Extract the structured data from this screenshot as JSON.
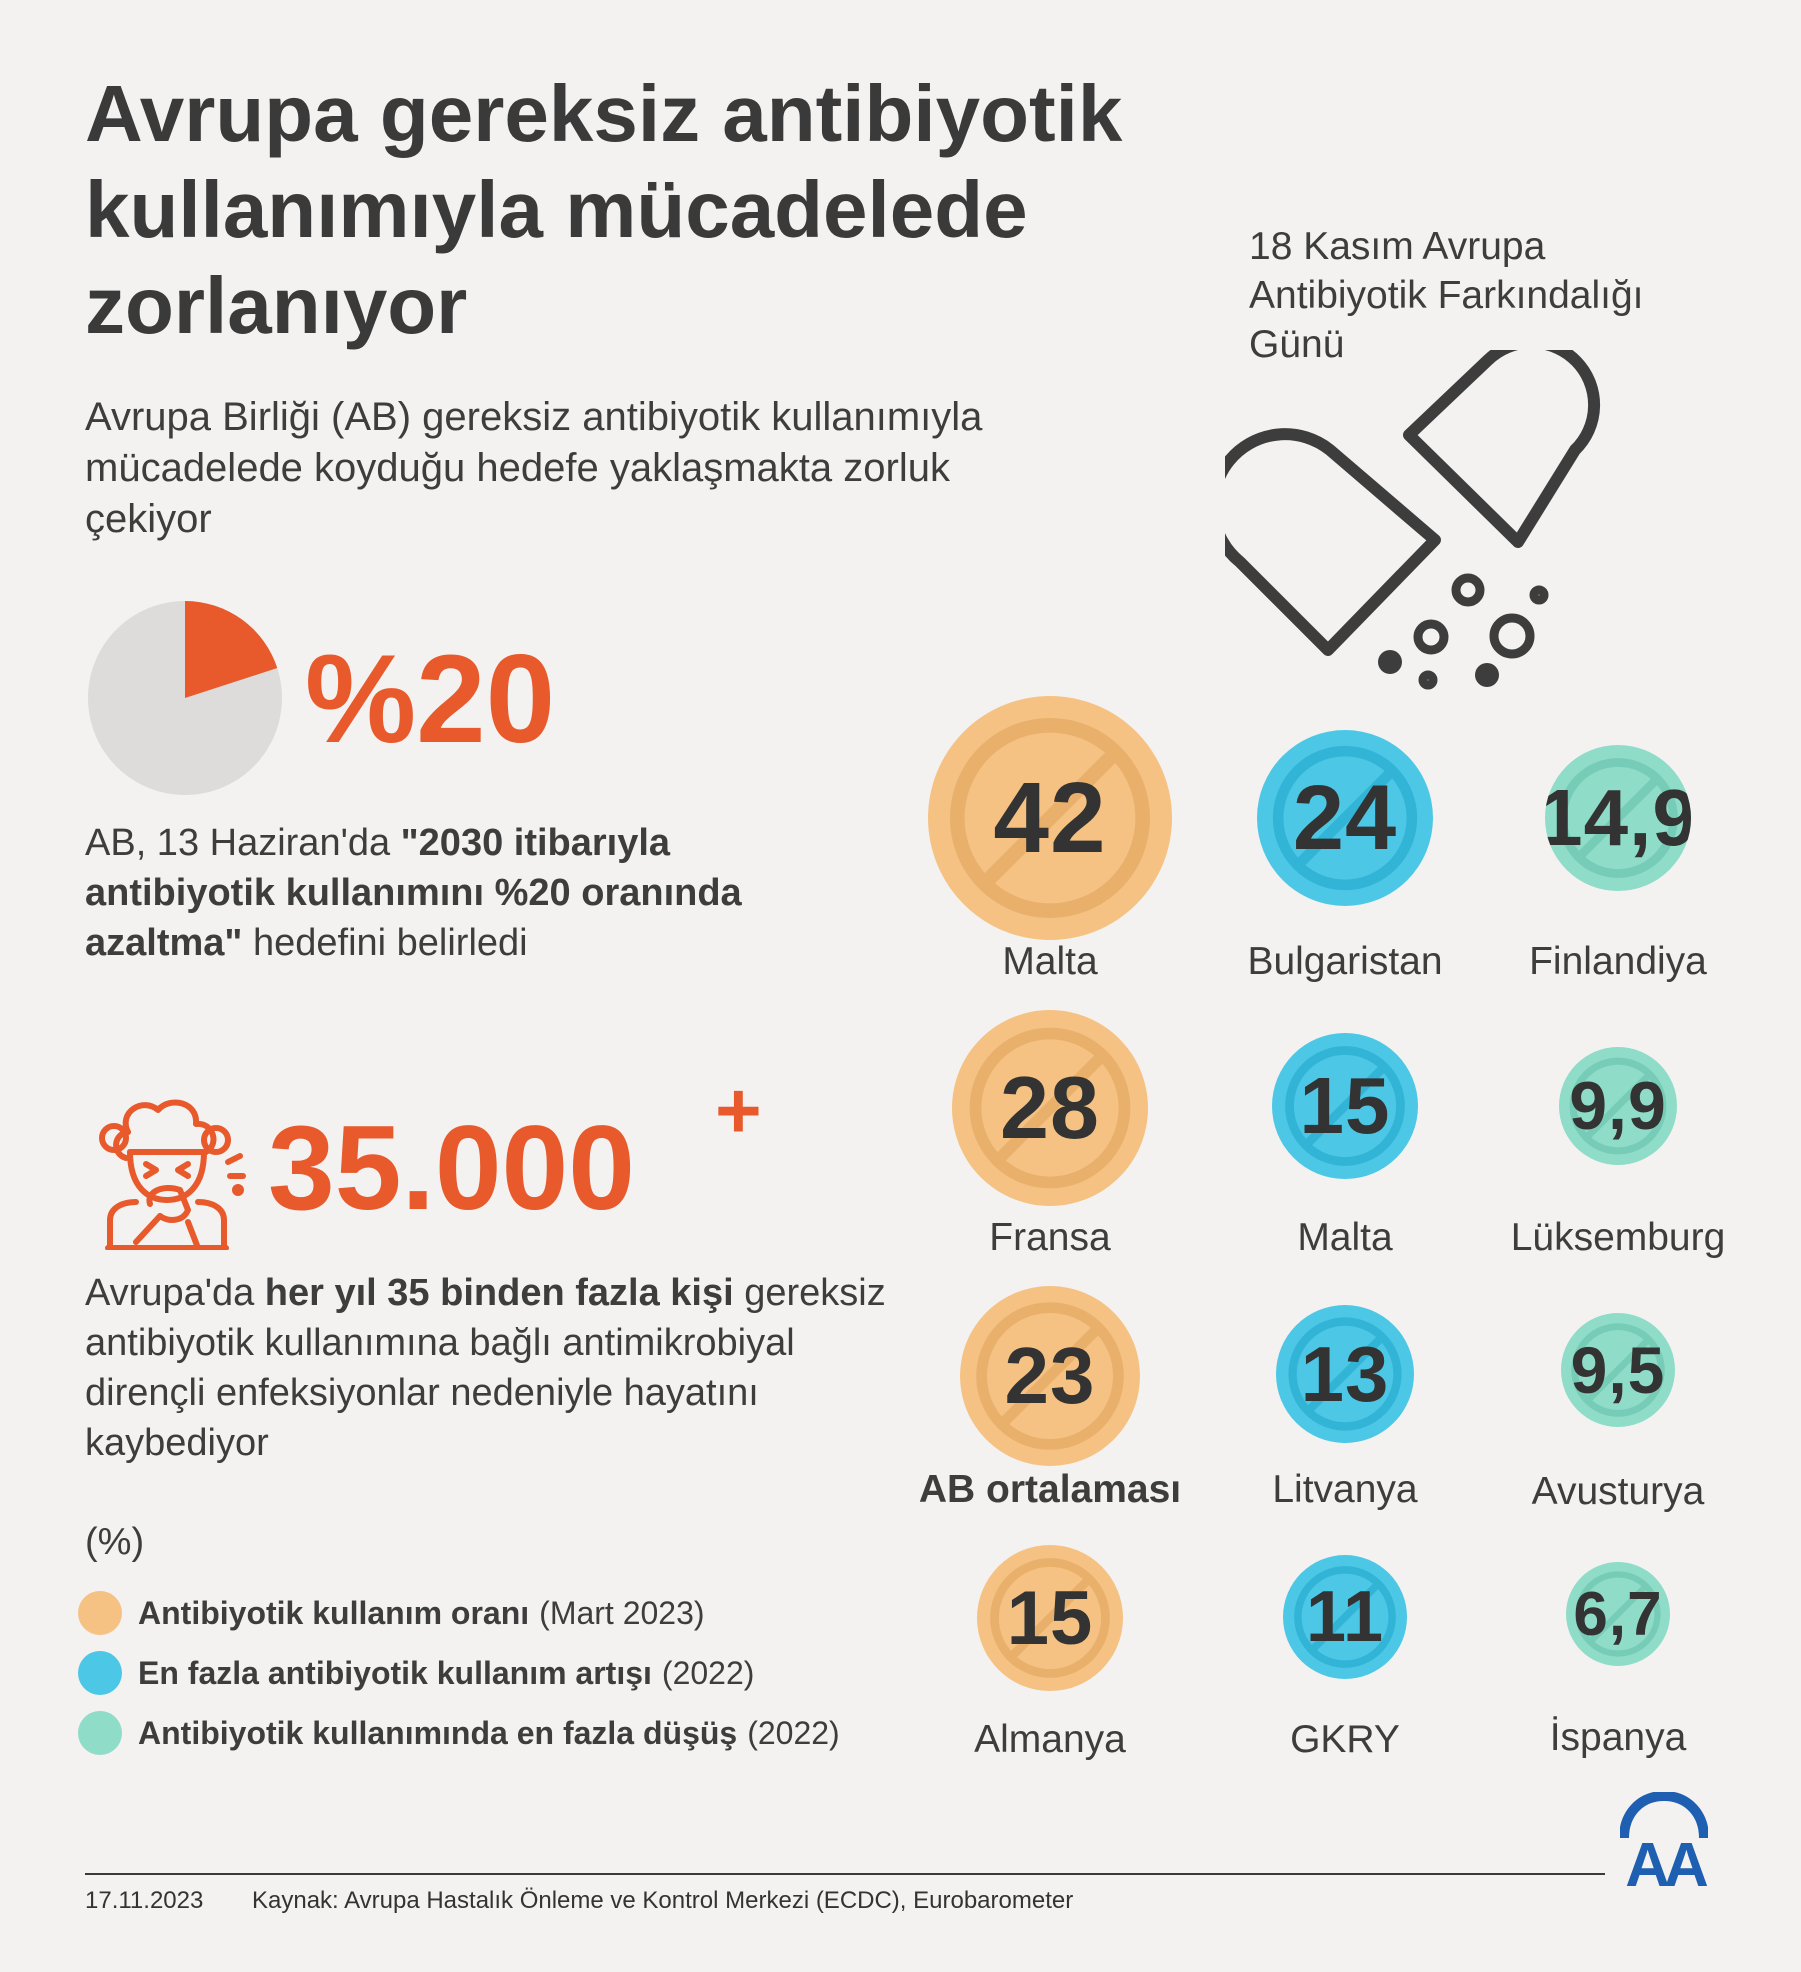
{
  "header": {
    "title": "Avrupa gereksiz antibiyotik kullanımıyla mücadelede zorlanıyor",
    "subtitle": "Avrupa Birliği (AB) gereksiz antibiyotik kullanımıyla mücadelede koyduğu hedefe yaklaşmakta zorluk çekiyor",
    "event_label": "18 Kasım Avrupa Antibiyotik Farkındalığı Günü"
  },
  "goal": {
    "percent_label": "%20",
    "percent_value": 20,
    "text_prefix": "AB, 13 Haziran'da ",
    "text_bold": "\"2030 itibarıyla antibiyotik kullanımını %20 oranında azaltma\"",
    "text_suffix": " hedefini belirledi"
  },
  "deaths": {
    "number": "35.000",
    "plus": "+",
    "text_prefix": "Avrupa'da ",
    "text_bold": "her yıl 35 binden fazla kişi",
    "text_suffix": " gereksiz antibiyotik kullanımına bağlı antimikrobiyal dirençli enfeksiyonlar nedeniyle hayatını kaybediyor"
  },
  "legend": {
    "unit": "(%)",
    "items": [
      {
        "bold": "Antibiyotik kullanım oranı",
        "normal": "(Mart 2023)",
        "color": "#f5c283"
      },
      {
        "bold": "En fazla antibiyotik kullanım artışı",
        "normal": "(2022)",
        "color": "#4cc7e6"
      },
      {
        "bold": "Antibiyotik kullanımında en fazla düşüş",
        "normal": "(2022)",
        "color": "#8fdcc8"
      }
    ]
  },
  "columns": {
    "usage": {
      "color": "#f5c283",
      "items": [
        {
          "value": "42",
          "country": "Malta"
        },
        {
          "value": "28",
          "country": "Fransa"
        },
        {
          "value": "23",
          "country": "AB ortalaması"
        },
        {
          "value": "15",
          "country": "Almanya"
        }
      ]
    },
    "increase": {
      "color": "#4cc7e6",
      "items": [
        {
          "value": "24",
          "country": "Bulgaristan"
        },
        {
          "value": "15",
          "country": "Malta"
        },
        {
          "value": "13",
          "country": "Litvanya"
        },
        {
          "value": "11",
          "country": "GKRY"
        }
      ]
    },
    "decrease": {
      "color": "#8fdcc8",
      "items": [
        {
          "value": "14,9",
          "country": "Finlandiya"
        },
        {
          "value": "9,9",
          "country": "Lüksemburg"
        },
        {
          "value": "9,5",
          "country": "Avusturya"
        },
        {
          "value": "6,7",
          "country": "İspanya"
        }
      ]
    }
  },
  "footer": {
    "date": "17.11.2023",
    "source": "Kaynak: Avrupa Hastalık Önleme ve Kontrol Merkezi (ECDC), Eurobarometer",
    "logo_text": "AA"
  },
  "colors": {
    "accent": "#e8592c",
    "text": "#3a3a3a"
  }
}
